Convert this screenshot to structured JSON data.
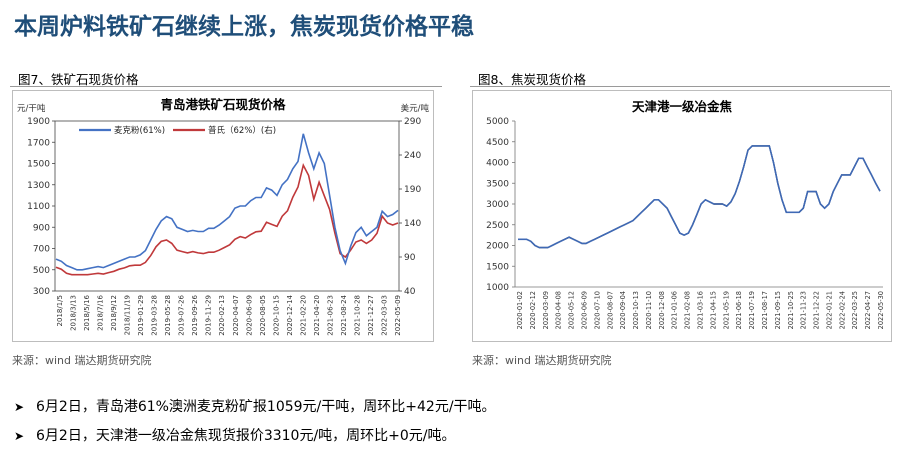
{
  "page": {
    "title": "本周炉料铁矿石继续上涨，焦炭现货价格平稳",
    "bullets": [
      "6月2日，青岛港61%澳洲麦克粉矿报1059元/干吨，周环比+42元/干吨。",
      "6月2日，天津港一级冶金焦现货报价3310元/吨，周环比+0元/吨。"
    ],
    "colors": {
      "title": "#1F4E79",
      "series_blue": "#4472C4",
      "series_red": "#C0393B",
      "series_black": "#000000"
    }
  },
  "fig7": {
    "label": "图7、铁矿石现货价格",
    "source": "来源：wind   瑞达期货研究院"
  },
  "fig8": {
    "label": "图8、焦炭现货价格",
    "source": "来源：wind   瑞达期货研究院"
  },
  "chart_data": [
    {
      "type": "line",
      "title": "青岛港铁矿石现货价格",
      "y_left_unit": "元/干吨",
      "y_right_unit": "美元/吨",
      "ylim_left": [
        300,
        1900
      ],
      "ylim_right": [
        40,
        290
      ],
      "yticks_left": [
        300,
        500,
        700,
        900,
        1100,
        1300,
        1500,
        1700,
        1900
      ],
      "yticks_right": [
        40,
        90,
        140,
        190,
        240,
        290
      ],
      "x_tick_labels": [
        "2018/1/5",
        "2018/3/13",
        "2018/5/16",
        "2018/7/16",
        "2018/9/12",
        "2018/11/19",
        "2019-01-29",
        "2019-03-28",
        "2019-05-28",
        "2019-07-26",
        "2019-09-26",
        "2019-11-29",
        "2020-02-13",
        "2020-04-07",
        "2020-06-09",
        "2020-08-05",
        "2020-10-15",
        "2020-12-14",
        "2021-02-20",
        "2021-04-20",
        "2021-06-23",
        "2021-08-24",
        "2021-10-28",
        "2021-12-27",
        "2022-03-03",
        "2022-05-09"
      ],
      "series": [
        {
          "name": "麦克粉(61%)",
          "axis": "left",
          "color": "#4472C4",
          "values": [
            600,
            580,
            540,
            520,
            500,
            500,
            510,
            520,
            530,
            520,
            540,
            560,
            580,
            600,
            620,
            620,
            640,
            680,
            780,
            880,
            960,
            1000,
            980,
            900,
            880,
            860,
            870,
            860,
            860,
            890,
            890,
            920,
            960,
            1000,
            1080,
            1100,
            1100,
            1150,
            1180,
            1180,
            1270,
            1250,
            1200,
            1300,
            1350,
            1450,
            1520,
            1780,
            1600,
            1450,
            1600,
            1500,
            1200,
            900,
            680,
            560,
            720,
            850,
            900,
            820,
            860,
            900,
            1050,
            1000,
            1020,
            1059
          ]
        },
        {
          "name": "普氏（62%）(右)",
          "axis": "right",
          "color": "#C0393B",
          "values": [
            75,
            72,
            66,
            64,
            64,
            64,
            64,
            65,
            66,
            65,
            67,
            69,
            72,
            74,
            77,
            78,
            78,
            82,
            92,
            105,
            113,
            115,
            110,
            100,
            98,
            96,
            98,
            96,
            95,
            97,
            97,
            100,
            104,
            108,
            116,
            120,
            118,
            123,
            127,
            128,
            141,
            138,
            135,
            150,
            158,
            178,
            193,
            225,
            210,
            175,
            200,
            180,
            160,
            125,
            95,
            90,
            100,
            112,
            115,
            110,
            115,
            125,
            150,
            140,
            137,
            140
          ]
        }
      ]
    },
    {
      "type": "line",
      "title": "天津港一级冶金焦",
      "ylim": [
        1000,
        5000
      ],
      "yticks": [
        1000,
        1500,
        2000,
        2500,
        3000,
        3500,
        4000,
        4500,
        5000
      ],
      "x_tick_labels": [
        "2020-01-02",
        "2020-02-12",
        "2020-03-09",
        "2020-04-08",
        "2020-05-12",
        "2020-06-09",
        "2020-07-10",
        "2020-08-07",
        "2020-09-04",
        "2020-10-13",
        "2020-11-10",
        "2020-12-08",
        "2021-01-06",
        "2021-02-08",
        "2021-03-16",
        "2021-04-15",
        "2021-05-19",
        "2021-06-18",
        "2021-07-19",
        "2021-08-17",
        "2021-09-15",
        "2021-10-25",
        "2021-11-23",
        "2021-12-22",
        "2022-01-21",
        "2022-02-24",
        "2022-03-25",
        "2022-04-27",
        "2022-05-30"
      ],
      "series": [
        {
          "name": "天津港一级冶金焦",
          "color": "#000000",
          "values": [
            2150,
            2150,
            2150,
            2100,
            2000,
            1950,
            1950,
            1950,
            2000,
            2050,
            2100,
            2150,
            2200,
            2150,
            2100,
            2050,
            2050,
            2100,
            2150,
            2200,
            2250,
            2300,
            2350,
            2400,
            2450,
            2500,
            2550,
            2600,
            2700,
            2800,
            2900,
            3000,
            3100,
            3100,
            3000,
            2900,
            2700,
            2500,
            2300,
            2250,
            2300,
            2500,
            2750,
            3000,
            3100,
            3050,
            3000,
            3000,
            3000,
            2950,
            3050,
            3250,
            3550,
            3900,
            4300,
            4400,
            4400,
            4400,
            4400,
            4400,
            4000,
            3500,
            3100,
            2800,
            2800,
            2800,
            2800,
            2900,
            3300,
            3300,
            3300,
            3000,
            2900,
            3000,
            3300,
            3500,
            3700,
            3700,
            3700,
            3900,
            4100,
            4100,
            3900,
            3700,
            3500,
            3310
          ]
        }
      ]
    }
  ]
}
